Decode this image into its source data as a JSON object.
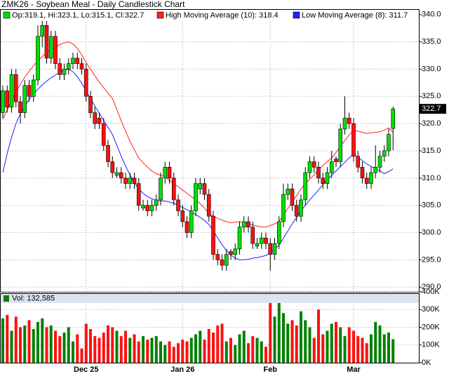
{
  "chart_data": [
    {
      "type": "candlestick",
      "title": "ZMK26 - Soybean Meal - Daily Candlestick Chart",
      "ohlc_label": "Op:319.1, Hi:323.1, Lo:315.1, Cl:322.7",
      "up_color": "#00e000",
      "down_color": "#ff1010",
      "categories": [
        null,
        null,
        null,
        null,
        null,
        null,
        null,
        null,
        null,
        null,
        null,
        null,
        null,
        null,
        null,
        null,
        null,
        null,
        null,
        "Dec 25",
        null,
        null,
        null,
        null,
        null,
        null,
        null,
        null,
        null,
        null,
        null,
        null,
        null,
        null,
        null,
        null,
        null,
        null,
        null,
        null,
        null,
        "Jan 26",
        null,
        null,
        null,
        null,
        null,
        null,
        null,
        null,
        null,
        null,
        null,
        null,
        null,
        null,
        null,
        null,
        null,
        null,
        null,
        "Feb",
        null,
        null,
        null,
        null,
        null,
        null,
        null,
        null,
        null,
        null,
        null,
        null,
        null,
        null,
        null,
        null,
        null,
        null,
        "Mar",
        null,
        null,
        null,
        null,
        null,
        null,
        null,
        null,
        null
      ],
      "open": [
        322,
        326,
        323,
        329,
        324,
        322,
        327,
        325,
        328,
        336,
        338,
        332,
        336,
        331,
        329,
        330,
        331,
        332,
        331,
        330,
        325,
        322,
        321,
        320,
        316,
        313,
        310.5,
        311,
        310,
        309,
        310,
        309,
        304.5,
        305,
        304,
        305,
        306,
        310,
        312,
        310,
        306,
        304,
        302,
        300,
        304,
        308,
        309,
        307,
        303,
        296,
        295,
        294,
        296.5,
        296,
        297,
        301,
        302,
        301,
        297.5,
        298,
        299,
        298,
        296,
        298,
        302,
        307,
        308,
        305,
        303,
        306,
        311,
        313,
        312,
        310,
        309,
        311,
        313.5,
        313,
        319,
        321,
        320,
        314,
        312,
        310,
        309,
        311,
        312,
        314,
        315,
        319.1
      ],
      "high": [
        327,
        327,
        330,
        330,
        325,
        328,
        328,
        329,
        338,
        339,
        339,
        337,
        337,
        332,
        331,
        332,
        333,
        333,
        332,
        331,
        326,
        323,
        322,
        321,
        317,
        314,
        312,
        312,
        311,
        311,
        311,
        310,
        306,
        306,
        306,
        307,
        311,
        313,
        313,
        311,
        307,
        305,
        303,
        305,
        310,
        310,
        310,
        308,
        304,
        297,
        296,
        297,
        297,
        298,
        302,
        303,
        303,
        302,
        299,
        300,
        300,
        299,
        299,
        303,
        309,
        309,
        309,
        306,
        307,
        312,
        314,
        314,
        313,
        311,
        312,
        315,
        314,
        320,
        325,
        322,
        321,
        315,
        313,
        311,
        312,
        316,
        315,
        316,
        319,
        323.1
      ],
      "low": [
        321,
        322,
        322,
        323,
        320,
        321,
        324,
        324,
        327,
        334,
        331,
        331,
        330,
        328,
        328,
        329,
        330,
        330,
        329,
        324,
        321,
        319,
        319,
        315,
        312,
        310,
        310,
        309,
        308,
        308,
        308,
        304,
        304,
        303,
        303,
        304,
        305,
        309,
        309,
        305,
        303,
        301,
        299,
        299,
        303,
        307,
        306,
        302,
        295,
        294,
        293,
        293,
        295,
        295,
        296,
        300,
        300,
        297,
        297,
        297,
        297,
        293,
        295,
        297,
        301,
        306,
        304,
        302,
        302,
        305,
        310,
        311,
        309,
        308,
        308,
        310,
        312,
        312,
        318,
        319,
        313,
        311,
        309,
        308,
        308,
        310,
        311,
        313,
        314,
        315.1
      ],
      "close": [
        326,
        323,
        329,
        324,
        322,
        327,
        325,
        328,
        336,
        338,
        332,
        336,
        331,
        329,
        330,
        331,
        332,
        331,
        330,
        325,
        322,
        320,
        320,
        316,
        313,
        311,
        311,
        310,
        309,
        310,
        309,
        305,
        305,
        304,
        305,
        306,
        310,
        312,
        310,
        306,
        304,
        302,
        300,
        304,
        309,
        309,
        307,
        303,
        296,
        295,
        294,
        296,
        296,
        297,
        301,
        302,
        301,
        298,
        298,
        299,
        298,
        296,
        298,
        302,
        307,
        308,
        305,
        303,
        306,
        311,
        313,
        312,
        310,
        309,
        311,
        313,
        313,
        319,
        321,
        320,
        314,
        312,
        310,
        309,
        311,
        312,
        314,
        315,
        318,
        322.7
      ],
      "series": [
        {
          "name": "High Moving Average (10): 318.4",
          "color": "#ff2020",
          "values": [
            320.8,
            322.5,
            324.2,
            325.8,
            327.2,
            328.5,
            329.6,
            330.6,
            331.5,
            332.3,
            333,
            333.6,
            334.1,
            334.5,
            334.8,
            335,
            334.6,
            333.8,
            332.6,
            331.2,
            330,
            328.8,
            327.6,
            326.6,
            325.6,
            324.6,
            322.6,
            320.5,
            318.6,
            316.8,
            315.2,
            313.7,
            312.8,
            312,
            311.3,
            310.8,
            310.5,
            310.2,
            309.6,
            309,
            308.4,
            307.8,
            307.2,
            306.6,
            306,
            305.3,
            304.5,
            303.5,
            303,
            302.6,
            302.3,
            302,
            301.8,
            301.9,
            302,
            301.8,
            301.6,
            301.4,
            301.2,
            301,
            301,
            301.3,
            301.6,
            302,
            303.2,
            304.4,
            305.6,
            306.8,
            308,
            309,
            309.8,
            310.6,
            311.5,
            312.3,
            313,
            313.7,
            314.7,
            315.8,
            316.9,
            317.9,
            318.8,
            318.6,
            318.4,
            318.2,
            318.3,
            318.4,
            318.5,
            318.8,
            319.2,
            318.4
          ]
        },
        {
          "name": "Low Moving Average (8): 311.7",
          "color": "#2020ff",
          "values": [
            311,
            314.5,
            317.5,
            320,
            321.8,
            323.2,
            324.4,
            325.4,
            326.3,
            327.1,
            327.8,
            328.4,
            328.9,
            329.4,
            329.8,
            330,
            329.5,
            328.6,
            327.4,
            326,
            324.6,
            323.2,
            321.9,
            320.6,
            319.3,
            318,
            316,
            314,
            312.2,
            310.6,
            309.2,
            308,
            307.2,
            306.6,
            306.2,
            305.9,
            305.8,
            305.8,
            305.6,
            305.4,
            305,
            304.6,
            304.2,
            303.8,
            303.3,
            302.8,
            302.2,
            301.5,
            300.3,
            299,
            297.8,
            296.7,
            295.9,
            295.3,
            295,
            295,
            295.1,
            295.3,
            295.4,
            295.6,
            295.8,
            296.3,
            297,
            297.7,
            299,
            300.3,
            301.6,
            302.8,
            304,
            305,
            306,
            306.9,
            307.8,
            308.8,
            309.7,
            310.5,
            311.3,
            312.1,
            312.9,
            313.7,
            314.4,
            313.8,
            313.2,
            312.6,
            312.1,
            311.8,
            311.3,
            310.8,
            311.2,
            311.7
          ]
        }
      ],
      "ylim": [
        289,
        341
      ],
      "yticks": [
        {
          "value": 290,
          "label": "290.0"
        },
        {
          "value": 295,
          "label": "295.0"
        },
        {
          "value": 300,
          "label": "300.0"
        },
        {
          "value": 305,
          "label": "305.0"
        },
        {
          "value": 310,
          "label": "310.0"
        },
        {
          "value": 315,
          "label": "315.0"
        },
        {
          "value": 320,
          "label": "320.0"
        },
        {
          "value": 325,
          "label": "325.0"
        },
        {
          "value": 330,
          "label": "330.0"
        },
        {
          "value": 335,
          "label": "335.0"
        },
        {
          "value": 340,
          "label": "340.0"
        }
      ],
      "grid": true
    },
    {
      "type": "bar",
      "title": "Vol: 132,585",
      "values": [
        250000,
        270000,
        180000,
        260000,
        200000,
        210000,
        240000,
        190000,
        230000,
        250000,
        200000,
        210000,
        180000,
        150000,
        170000,
        200000,
        120000,
        160000,
        80000,
        220000,
        190000,
        150000,
        140000,
        170000,
        210000,
        200000,
        180000,
        150000,
        180000,
        140000,
        160000,
        120000,
        150000,
        130000,
        140000,
        150000,
        120000,
        100000,
        120000,
        90000,
        110000,
        130000,
        120000,
        140000,
        160000,
        180000,
        130000,
        190000,
        170000,
        210000,
        220000,
        120000,
        140000,
        100000,
        160000,
        180000,
        110000,
        150000,
        140000,
        120000,
        90000,
        340000,
        260000,
        340000,
        280000,
        220000,
        240000,
        210000,
        290000,
        240000,
        200000,
        140000,
        300000,
        160000,
        180000,
        220000,
        230000,
        200000,
        150000,
        200000,
        180000,
        150000,
        140000,
        110000,
        160000,
        230000,
        210000,
        160000,
        170000,
        132585
      ],
      "ylim": [
        0,
        400000
      ],
      "yticks": [
        {
          "value": 0,
          "label": "0K"
        },
        {
          "value": 100000,
          "label": "100K"
        },
        {
          "value": 200000,
          "label": "200K"
        },
        {
          "value": 300000,
          "label": "300K"
        },
        {
          "value": 400000,
          "label": "400K"
        }
      ],
      "grid": true
    }
  ]
}
